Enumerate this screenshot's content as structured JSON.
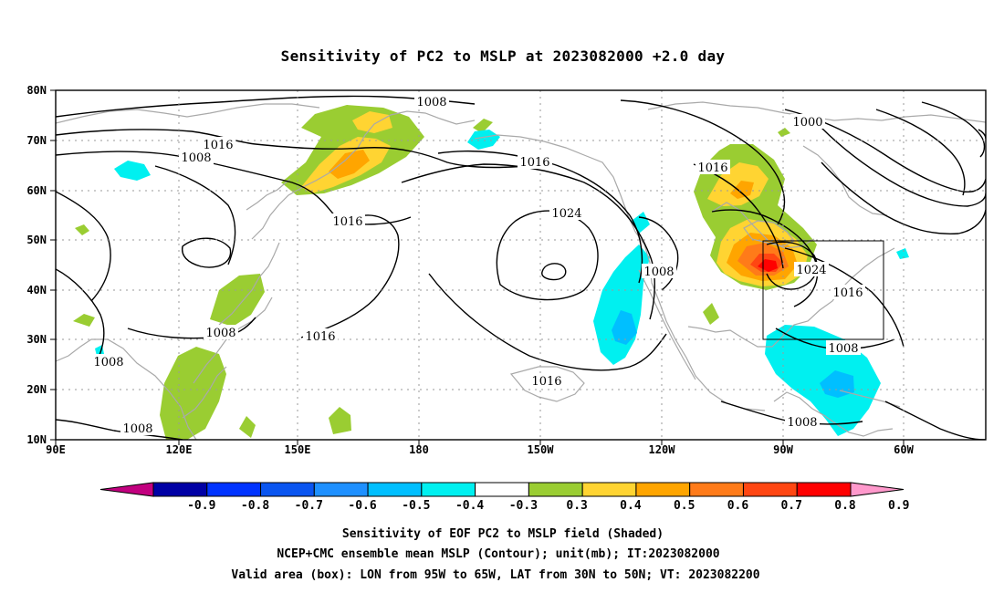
{
  "title": "Sensitivity of PC2 to MSLP at 2023082000 +2.0 day",
  "lat_labels": [
    "80N",
    "70N",
    "60N",
    "50N",
    "40N",
    "30N",
    "20N",
    "10N"
  ],
  "lon_labels": [
    "90E",
    "120E",
    "150E",
    "180",
    "150W",
    "120W",
    "90W",
    "60W"
  ],
  "colorbar": {
    "labels": [
      "-0.9",
      "-0.8",
      "-0.7",
      "-0.6",
      "-0.5",
      "-0.4",
      "-0.3",
      "0.3",
      "0.4",
      "0.5",
      "0.6",
      "0.7",
      "0.8",
      "0.9"
    ],
    "colors": [
      "#c2007f",
      "#0000a5",
      "#0033ff",
      "#0a55f0",
      "#1e90ff",
      "#00bfff",
      "#00f0f0",
      "#ffffff",
      "#9acd32",
      "#ffd432",
      "#ffa500",
      "#ff7b19",
      "#ff4612",
      "#ff0000",
      "#ff99cc"
    ]
  },
  "isobar_labels": [
    "1008",
    "1016",
    "1008",
    "1000",
    "1016",
    "1016",
    "1024",
    "1016",
    "1008",
    "1024",
    "1016",
    "1008",
    "1008",
    "1016",
    "1016",
    "1008",
    "1008",
    "1008"
  ],
  "captions": [
    "Sensitivity of EOF PC2 to MSLP field (Shaded)",
    "NCEP+CMC ensemble mean MSLP (Contour); unit(mb); IT:2023082000",
    "Valid area (box): LON from 95W to 65W, LAT from 30N to 50N; VT: 2023082200"
  ]
}
